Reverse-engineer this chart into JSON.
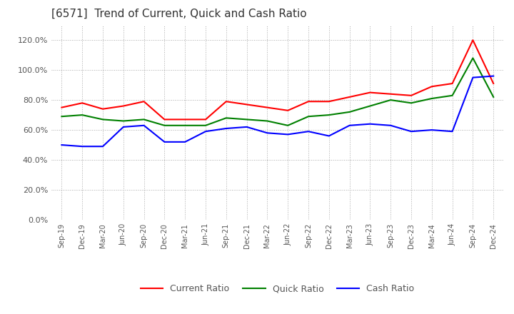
{
  "title": "[6571]  Trend of Current, Quick and Cash Ratio",
  "x_labels": [
    "Sep-19",
    "Dec-19",
    "Mar-20",
    "Jun-20",
    "Sep-20",
    "Dec-20",
    "Mar-21",
    "Jun-21",
    "Sep-21",
    "Dec-21",
    "Mar-22",
    "Jun-22",
    "Sep-22",
    "Dec-22",
    "Mar-23",
    "Jun-23",
    "Sep-23",
    "Dec-23",
    "Mar-24",
    "Jun-24",
    "Sep-24",
    "Dec-24"
  ],
  "current_ratio": [
    75,
    78,
    74,
    76,
    79,
    67,
    67,
    67,
    79,
    77,
    75,
    73,
    79,
    79,
    82,
    85,
    84,
    83,
    89,
    91,
    120,
    91
  ],
  "quick_ratio": [
    69,
    70,
    67,
    66,
    67,
    63,
    63,
    63,
    68,
    67,
    66,
    63,
    69,
    70,
    72,
    76,
    80,
    78,
    81,
    83,
    108,
    82
  ],
  "cash_ratio": [
    50,
    49,
    49,
    62,
    63,
    52,
    52,
    59,
    61,
    62,
    58,
    57,
    59,
    56,
    63,
    64,
    63,
    59,
    60,
    59,
    95,
    96
  ],
  "current_color": "#ff0000",
  "quick_color": "#008000",
  "cash_color": "#0000ff",
  "ylim": [
    0,
    130
  ],
  "yticks": [
    0,
    20,
    40,
    60,
    80,
    100,
    120
  ],
  "background_color": "#ffffff",
  "grid_color": "#aaaaaa",
  "title_fontsize": 11,
  "legend_labels": [
    "Current Ratio",
    "Quick Ratio",
    "Cash Ratio"
  ]
}
